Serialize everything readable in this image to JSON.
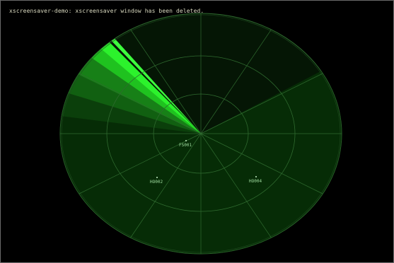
{
  "message": "xscreensaver-demo: xscreensaver window has been deleted.",
  "colors": {
    "background": "#000000",
    "sweep_bright": "#22ff22",
    "sweep_dark": "#063306",
    "grid": "#2f6a2f",
    "text": "#d9d9bf",
    "label": "#9edb9e"
  },
  "hosts": [
    {
      "name": "FS001"
    },
    {
      "name": "HO002"
    },
    {
      "name": "HO004"
    }
  ]
}
